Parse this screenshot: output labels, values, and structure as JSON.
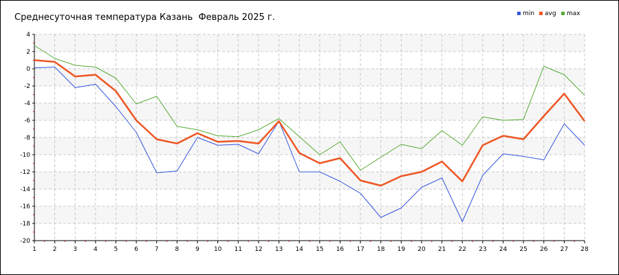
{
  "chart_data": {
    "type": "line",
    "title": "Среднесуточная температура Казань  Февраль 2025 г.",
    "xlabel": "",
    "ylabel": "",
    "x": [
      1,
      2,
      3,
      4,
      5,
      6,
      7,
      8,
      9,
      10,
      11,
      12,
      13,
      14,
      15,
      16,
      17,
      18,
      19,
      20,
      21,
      22,
      23,
      24,
      25,
      26,
      27,
      28
    ],
    "x_tick_labels": [
      "1",
      "2",
      "3",
      "4",
      "5",
      "6",
      "7",
      "8",
      "9",
      "10",
      "11",
      "12",
      "13",
      "14",
      "15",
      "16",
      "17",
      "18",
      "19",
      "20",
      "21",
      "22",
      "23",
      "24",
      "25",
      "26",
      "27",
      "28"
    ],
    "ylim": [
      -20,
      4
    ],
    "y_ticks": [
      4,
      2,
      0,
      -2,
      -4,
      -6,
      -8,
      -10,
      -12,
      -14,
      -16,
      -18,
      -20
    ],
    "y_tick_labels": [
      "4",
      "2",
      "0",
      "-2",
      "-4",
      "-6",
      "-8",
      "-10",
      "-12",
      "-14",
      "-16",
      "-18",
      "-20"
    ],
    "grid": true,
    "legend_position": "top-right",
    "series": [
      {
        "name": "min",
        "color": "#3355dd",
        "values": [
          0.1,
          0.2,
          -2.2,
          -1.8,
          -4.4,
          -7.4,
          -12.1,
          -11.9,
          -8.0,
          -8.9,
          -8.8,
          -9.9,
          -6.1,
          -12.0,
          -12.0,
          -13.1,
          -14.5,
          -17.3,
          -16.2,
          -13.8,
          -12.7,
          -17.8,
          -12.4,
          -9.9,
          -10.2,
          -10.6,
          -6.4,
          -8.9
        ]
      },
      {
        "name": "avg",
        "color": "#ee5522",
        "values": [
          1.0,
          0.8,
          -0.9,
          -0.7,
          -2.6,
          -6.0,
          -8.2,
          -8.7,
          -7.5,
          -8.5,
          -8.4,
          -8.7,
          -6.1,
          -9.8,
          -11.0,
          -10.4,
          -13.0,
          -13.6,
          -12.5,
          -12.0,
          -10.8,
          -13.1,
          -8.9,
          -7.8,
          -8.2,
          -5.5,
          -2.9,
          -6.1
        ]
      },
      {
        "name": "max",
        "color": "#55aa33",
        "values": [
          2.7,
          1.2,
          0.4,
          0.2,
          -1.1,
          -4.1,
          -3.2,
          -6.7,
          -7.1,
          -7.8,
          -7.9,
          -7.1,
          -5.8,
          -7.9,
          -10.0,
          -8.5,
          -11.8,
          -10.3,
          -8.8,
          -9.3,
          -7.2,
          -8.9,
          -5.6,
          -6.0,
          -5.9,
          0.3,
          -0.7,
          -3.1
        ]
      }
    ]
  }
}
